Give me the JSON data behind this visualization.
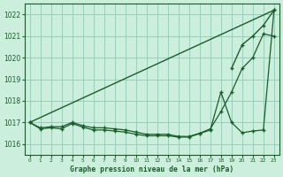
{
  "title": "Graphe pression niveau de la mer (hPa)",
  "bg_color": "#cceedd",
  "grid_color": "#99ccbb",
  "line_color": "#1a5c2a",
  "marker_color": "#1a5c2a",
  "xlim": [
    -0.5,
    23.5
  ],
  "ylim": [
    1015.5,
    1022.5
  ],
  "yticks": [
    1016,
    1017,
    1018,
    1019,
    1020,
    1021,
    1022
  ],
  "xticks": [
    0,
    1,
    2,
    3,
    4,
    5,
    6,
    7,
    8,
    9,
    10,
    11,
    12,
    13,
    14,
    15,
    16,
    17,
    18,
    19,
    20,
    21,
    22,
    23
  ],
  "series1_x": [
    0,
    23
  ],
  "series1_y": [
    1017.0,
    1022.2
  ],
  "series2_x": [
    0,
    1,
    2,
    3,
    4,
    5,
    6,
    7,
    8,
    9,
    10,
    11,
    12,
    13,
    14,
    15,
    16,
    17,
    18,
    19,
    20,
    21,
    22,
    23
  ],
  "series2_y": [
    1017.0,
    1016.75,
    1016.8,
    1016.8,
    1017.0,
    1016.85,
    1016.75,
    1016.75,
    1016.7,
    1016.65,
    1016.55,
    1016.45,
    1016.45,
    1016.45,
    1016.35,
    1016.35,
    1016.5,
    1016.7,
    1017.5,
    1018.4,
    1019.5,
    1020.0,
    1021.1,
    1021.0
  ],
  "series3_x": [
    0,
    1,
    2,
    3,
    4,
    5,
    6,
    7,
    8,
    9,
    10,
    11,
    12,
    13,
    14,
    15,
    16,
    17,
    18,
    19,
    20,
    21,
    22,
    23
  ],
  "series3_y": [
    1017.0,
    1016.7,
    1016.75,
    1016.7,
    1016.95,
    1016.8,
    1016.65,
    1016.65,
    1016.6,
    1016.55,
    1016.45,
    1016.38,
    1016.38,
    1016.38,
    1016.32,
    1016.32,
    1016.48,
    1016.65,
    1018.4,
    1017.0,
    1016.5,
    1016.6,
    1016.65,
    1022.2
  ],
  "series4_x": [
    19,
    20,
    21,
    22,
    23
  ],
  "series4_y": [
    1019.5,
    1020.6,
    1021.0,
    1021.5,
    1022.2
  ]
}
